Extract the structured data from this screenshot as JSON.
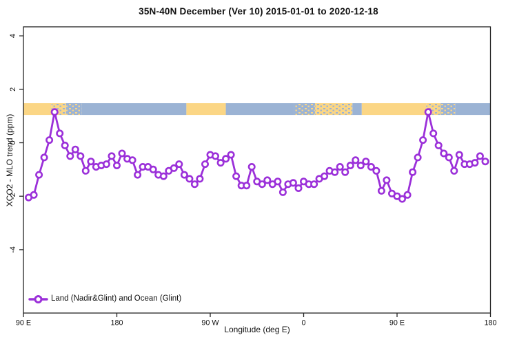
{
  "title": "35N-40N December (Ver 10)   2015-01-01 to 2020-12-18",
  "chart_data": {
    "type": "line",
    "title": "35N-40N December (Ver 10)   2015-01-01 to 2020-12-18",
    "xlabel": "Longitude (deg E)",
    "ylabel": "XCO2 - MLO trend (ppm)",
    "xlim": [
      90,
      540
    ],
    "ylim": [
      -6.5,
      4.4
    ],
    "grid": false,
    "x_ticks": [
      {
        "value": 90,
        "label": "90 E"
      },
      {
        "value": 180,
        "label": "180"
      },
      {
        "value": 270,
        "label": "90 W"
      },
      {
        "value": 360,
        "label": "0"
      },
      {
        "value": 450,
        "label": "90 E"
      },
      {
        "value": 540,
        "label": "180"
      }
    ],
    "y_ticks": [
      {
        "value": 4,
        "label": "4"
      },
      {
        "value": 2,
        "label": "2"
      },
      {
        "value": 0,
        "label": "0"
      },
      {
        "value": -2,
        "label": "-2"
      },
      {
        "value": -4,
        "label": "-4"
      }
    ],
    "legend": {
      "position": "bottom-left",
      "entries": [
        {
          "label": "Land (Nadir&Glint) and Ocean (Glint)",
          "color": "#9B30D9",
          "marker": "open-circle"
        }
      ]
    },
    "series": [
      {
        "name": "Land (Nadir&Glint) and Ocean (Glint)",
        "x": [
          95,
          100,
          105,
          110,
          115,
          120,
          125,
          130,
          135,
          140,
          145,
          150,
          155,
          160,
          165,
          170,
          175,
          180,
          185,
          190,
          195,
          200,
          205,
          210,
          215,
          220,
          225,
          230,
          235,
          240,
          245,
          250,
          255,
          260,
          265,
          270,
          275,
          280,
          285,
          290,
          295,
          300,
          305,
          310,
          315,
          320,
          325,
          330,
          335,
          340,
          345,
          350,
          355,
          360,
          365,
          370,
          375,
          380,
          385,
          390,
          395,
          400,
          405,
          410,
          415,
          420,
          425,
          430,
          435,
          440,
          445,
          450,
          455,
          460,
          465,
          470,
          475,
          480,
          485,
          490,
          495,
          500,
          505,
          510,
          515,
          520,
          525,
          530,
          535
        ],
        "y": [
          -2.05,
          -1.95,
          -1.2,
          -0.55,
          0.1,
          1.15,
          0.35,
          -0.1,
          -0.5,
          -0.25,
          -0.5,
          -1.05,
          -0.7,
          -0.9,
          -0.85,
          -0.8,
          -0.5,
          -0.85,
          -0.4,
          -0.6,
          -0.65,
          -1.2,
          -0.9,
          -0.9,
          -1.0,
          -1.2,
          -1.25,
          -1.05,
          -0.95,
          -0.8,
          -1.2,
          -1.35,
          -1.55,
          -1.35,
          -0.8,
          -0.45,
          -0.5,
          -0.75,
          -0.6,
          -0.45,
          -1.25,
          -1.6,
          -1.6,
          -0.9,
          -1.45,
          -1.55,
          -1.4,
          -1.55,
          -1.45,
          -1.85,
          -1.55,
          -1.5,
          -1.7,
          -1.45,
          -1.55,
          -1.55,
          -1.35,
          -1.25,
          -1.05,
          -1.1,
          -0.9,
          -1.1,
          -0.85,
          -0.65,
          -0.85,
          -0.7,
          -0.9,
          -1.05,
          -1.8,
          -1.4,
          -1.9,
          -2.0,
          -2.1,
          -1.95,
          -1.1,
          -0.55,
          0.1,
          1.15,
          0.35,
          -0.1,
          -0.4,
          -0.55,
          -1.05,
          -0.45,
          -0.8,
          -0.8,
          -0.75,
          -0.5,
          -0.7
        ]
      }
    ],
    "map_strip": {
      "description": "land/ocean coastline band",
      "y_low": 1.04,
      "y_high": 1.48,
      "segments": [
        {
          "from": 90,
          "to": 117,
          "type": "land"
        },
        {
          "from": 117,
          "to": 131,
          "type": "mixed_land"
        },
        {
          "from": 131,
          "to": 146,
          "type": "mixed_ocean"
        },
        {
          "from": 146,
          "to": 247,
          "type": "ocean"
        },
        {
          "from": 247,
          "to": 285,
          "type": "land"
        },
        {
          "from": 285,
          "to": 351,
          "type": "ocean"
        },
        {
          "from": 351,
          "to": 371,
          "type": "mixed_ocean"
        },
        {
          "from": 371,
          "to": 407,
          "type": "mixed_land"
        },
        {
          "from": 407,
          "to": 416,
          "type": "ocean"
        },
        {
          "from": 416,
          "to": 478,
          "type": "land"
        },
        {
          "from": 478,
          "to": 492,
          "type": "mixed_land"
        },
        {
          "from": 492,
          "to": 506,
          "type": "mixed_ocean"
        },
        {
          "from": 506,
          "to": 540,
          "type": "ocean"
        }
      ]
    },
    "colors": {
      "line": "#9B30D9",
      "marker_fill": "#FFFFFF",
      "land": "#FBD685",
      "ocean": "#9BB3D4",
      "axis": "#222222",
      "text": "#111111",
      "background": "#FFFFFF"
    }
  }
}
